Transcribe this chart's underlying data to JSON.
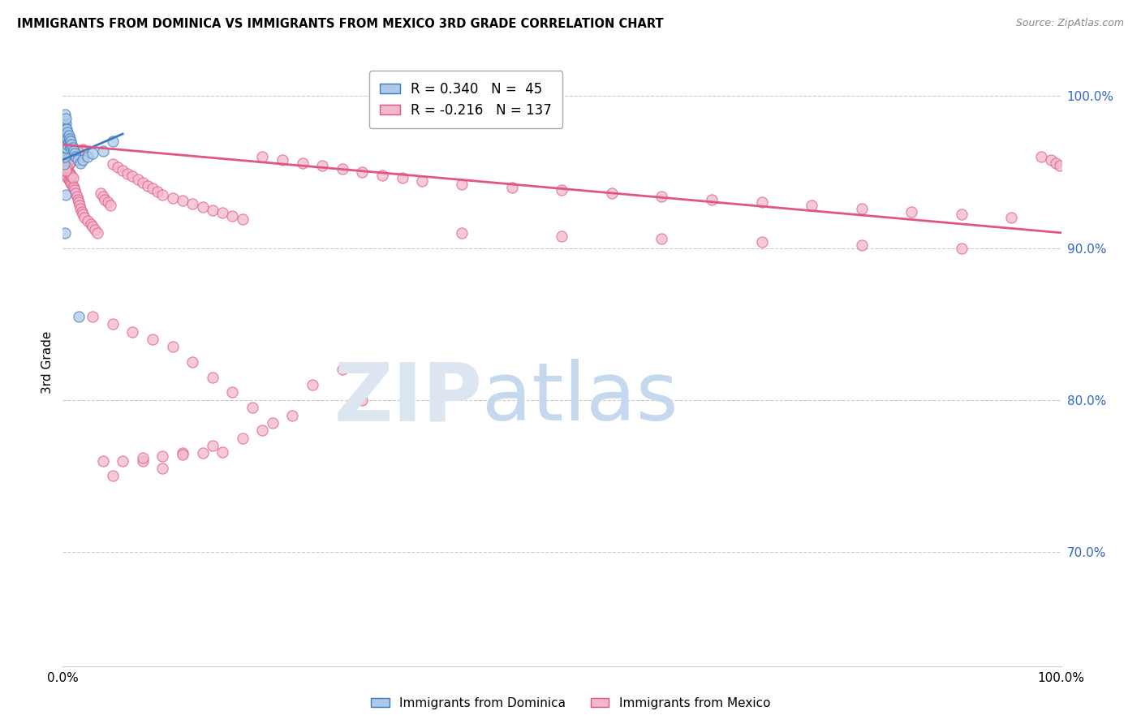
{
  "title": "IMMIGRANTS FROM DOMINICA VS IMMIGRANTS FROM MEXICO 3RD GRADE CORRELATION CHART",
  "source": "Source: ZipAtlas.com",
  "ylabel": "3rd Grade",
  "legend_blue_R": "0.340",
  "legend_blue_N": "45",
  "legend_pink_R": "-0.216",
  "legend_pink_N": "137",
  "blue_color": "#aec9e8",
  "pink_color": "#f4b8cb",
  "blue_line_color": "#3a7abf",
  "pink_line_color": "#e05585",
  "ylim_low": 0.625,
  "ylim_high": 1.025,
  "xlim_low": 0.0,
  "xlim_high": 1.0,
  "right_yticks": [
    1.0,
    0.9,
    0.8,
    0.7
  ],
  "right_yticklabels": [
    "100.0%",
    "90.0%",
    "80.0%",
    "70.0%"
  ],
  "blue_scatter": {
    "x": [
      0.001,
      0.001,
      0.001,
      0.001,
      0.001,
      0.002,
      0.002,
      0.002,
      0.002,
      0.002,
      0.003,
      0.003,
      0.003,
      0.003,
      0.003,
      0.004,
      0.004,
      0.004,
      0.004,
      0.005,
      0.005,
      0.005,
      0.006,
      0.006,
      0.007,
      0.007,
      0.008,
      0.008,
      0.009,
      0.01,
      0.011,
      0.012,
      0.013,
      0.015,
      0.018,
      0.02,
      0.025,
      0.03,
      0.04,
      0.05,
      0.002,
      0.003,
      0.016,
      0.002,
      0.003
    ],
    "y": [
      0.975,
      0.97,
      0.965,
      0.96,
      0.955,
      0.98,
      0.975,
      0.97,
      0.965,
      0.96,
      0.982,
      0.978,
      0.974,
      0.97,
      0.966,
      0.978,
      0.974,
      0.97,
      0.966,
      0.976,
      0.972,
      0.968,
      0.974,
      0.97,
      0.972,
      0.968,
      0.97,
      0.966,
      0.968,
      0.966,
      0.964,
      0.962,
      0.96,
      0.958,
      0.956,
      0.958,
      0.96,
      0.962,
      0.964,
      0.97,
      0.91,
      0.935,
      0.855,
      0.988,
      0.985
    ]
  },
  "pink_scatter": {
    "x": [
      0.001,
      0.001,
      0.001,
      0.002,
      0.002,
      0.002,
      0.002,
      0.003,
      0.003,
      0.003,
      0.003,
      0.004,
      0.004,
      0.004,
      0.004,
      0.005,
      0.005,
      0.005,
      0.006,
      0.006,
      0.006,
      0.007,
      0.007,
      0.008,
      0.008,
      0.009,
      0.009,
      0.01,
      0.01,
      0.011,
      0.012,
      0.013,
      0.014,
      0.015,
      0.016,
      0.017,
      0.018,
      0.019,
      0.02,
      0.022,
      0.025,
      0.028,
      0.03,
      0.032,
      0.035,
      0.038,
      0.04,
      0.042,
      0.045,
      0.048,
      0.05,
      0.055,
      0.06,
      0.065,
      0.07,
      0.075,
      0.08,
      0.085,
      0.09,
      0.095,
      0.1,
      0.11,
      0.12,
      0.13,
      0.14,
      0.15,
      0.16,
      0.17,
      0.18,
      0.2,
      0.22,
      0.24,
      0.26,
      0.28,
      0.3,
      0.32,
      0.34,
      0.36,
      0.4,
      0.45,
      0.5,
      0.55,
      0.6,
      0.65,
      0.7,
      0.75,
      0.8,
      0.85,
      0.9,
      0.95,
      0.3,
      0.28,
      0.25,
      0.23,
      0.21,
      0.19,
      0.17,
      0.15,
      0.13,
      0.11,
      0.09,
      0.07,
      0.05,
      0.03,
      0.02,
      0.015,
      0.012,
      0.01,
      0.008,
      0.006,
      0.004,
      0.003,
      0.002,
      0.05,
      0.08,
      0.1,
      0.12,
      0.15,
      0.18,
      0.2,
      0.4,
      0.5,
      0.6,
      0.7,
      0.8,
      0.9,
      0.98,
      0.99,
      0.995,
      0.999,
      0.04,
      0.06,
      0.08,
      0.1,
      0.12,
      0.14,
      0.16
    ],
    "y": [
      0.955,
      0.96,
      0.965,
      0.952,
      0.957,
      0.962,
      0.967,
      0.95,
      0.955,
      0.96,
      0.965,
      0.948,
      0.953,
      0.958,
      0.963,
      0.946,
      0.951,
      0.956,
      0.945,
      0.95,
      0.955,
      0.944,
      0.949,
      0.943,
      0.948,
      0.942,
      0.947,
      0.941,
      0.946,
      0.94,
      0.938,
      0.936,
      0.934,
      0.932,
      0.93,
      0.928,
      0.926,
      0.924,
      0.922,
      0.92,
      0.918,
      0.916,
      0.914,
      0.912,
      0.91,
      0.936,
      0.934,
      0.932,
      0.93,
      0.928,
      0.955,
      0.953,
      0.951,
      0.949,
      0.947,
      0.945,
      0.943,
      0.941,
      0.939,
      0.937,
      0.935,
      0.933,
      0.931,
      0.929,
      0.927,
      0.925,
      0.923,
      0.921,
      0.919,
      0.96,
      0.958,
      0.956,
      0.954,
      0.952,
      0.95,
      0.948,
      0.946,
      0.944,
      0.942,
      0.94,
      0.938,
      0.936,
      0.934,
      0.932,
      0.93,
      0.928,
      0.926,
      0.924,
      0.922,
      0.92,
      0.8,
      0.82,
      0.81,
      0.79,
      0.785,
      0.795,
      0.805,
      0.815,
      0.825,
      0.835,
      0.84,
      0.845,
      0.85,
      0.855,
      0.965,
      0.963,
      0.961,
      0.959,
      0.957,
      0.955,
      0.953,
      0.951,
      0.97,
      0.75,
      0.76,
      0.755,
      0.765,
      0.77,
      0.775,
      0.78,
      0.91,
      0.908,
      0.906,
      0.904,
      0.902,
      0.9,
      0.96,
      0.958,
      0.956,
      0.954,
      0.76,
      0.76,
      0.762,
      0.763,
      0.764,
      0.765,
      0.766
    ]
  },
  "blue_line": {
    "x0": 0.0,
    "x1": 0.06,
    "y0": 0.958,
    "y1": 0.975
  },
  "pink_line": {
    "x0": 0.0,
    "x1": 1.0,
    "y0": 0.968,
    "y1": 0.91
  }
}
